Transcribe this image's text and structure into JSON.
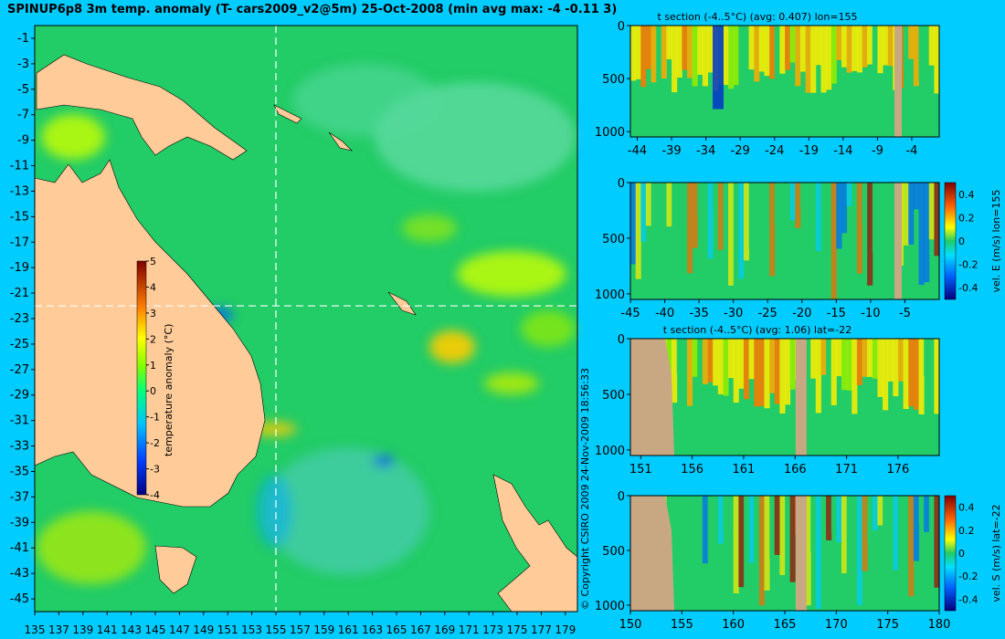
{
  "main_title": "SPINUP6p8 3m temp. anomaly (T- cars2009_v2@5m) 25-Oct-2008 (min avg max: -4 -0.11 3)",
  "copyright": "© Copyright CSIRO 2009   24-Nov-2009 18:56:33",
  "map": {
    "lat_ticks": [
      "-1",
      "-3",
      "-5",
      "-7",
      "-9",
      "-11",
      "-13",
      "-15",
      "-17",
      "-19",
      "-21",
      "-23",
      "-25",
      "-27",
      "-29",
      "-31",
      "-33",
      "-35",
      "-37",
      "-39",
      "-41",
      "-43",
      "-45"
    ],
    "lon_ticks": [
      "135",
      "137",
      "139",
      "141",
      "143",
      "145",
      "147",
      "149",
      "151",
      "153",
      "155",
      "157",
      "159",
      "161",
      "163",
      "165",
      "167",
      "169",
      "171",
      "173",
      "175",
      "177",
      "179"
    ],
    "section_lon": 155,
    "section_lat": -22,
    "colorbar": {
      "label": "temperature anomaly (°C)",
      "ticks": [
        "5",
        "4",
        "3",
        "2",
        "1",
        "0",
        "-1",
        "-2",
        "-3",
        "-4"
      ]
    }
  },
  "panels": [
    {
      "id": "p1",
      "title": "t section (-4..5°C) (avg: 0.407) lon=155",
      "x_ticks": [
        "-44",
        "-39",
        "-34",
        "-29",
        "-24",
        "-19",
        "-14",
        "-9",
        "-4"
      ],
      "y_ticks": [
        "0",
        "500",
        "1000"
      ],
      "colorbar": null
    },
    {
      "id": "p2",
      "title": "",
      "x_ticks": [
        "-45",
        "-40",
        "-35",
        "-30",
        "-25",
        "-20",
        "-15",
        "-10",
        "-5"
      ],
      "y_ticks": [
        "0",
        "500",
        "1000"
      ],
      "colorbar": {
        "label": "vel. E (m/s) lon=155",
        "ticks": [
          "0.4",
          "0.2",
          "0",
          "-0.2",
          "-0.4"
        ]
      }
    },
    {
      "id": "p3",
      "title": "t section (-4..5°C) (avg: 1.06) lat=-22",
      "x_ticks": [
        "151",
        "156",
        "161",
        "166",
        "171",
        "176"
      ],
      "y_ticks": [
        "0",
        "500",
        "1000"
      ],
      "colorbar": null
    },
    {
      "id": "p4",
      "title": "",
      "x_ticks": [
        "150",
        "155",
        "160",
        "165",
        "170",
        "175",
        "180"
      ],
      "y_ticks": [
        "0",
        "500",
        "1000"
      ],
      "colorbar": {
        "label": "vel. S (m/s) lat=-22",
        "ticks": [
          "0.4",
          "0.2",
          "0",
          "-0.2",
          "-0.4"
        ]
      }
    }
  ],
  "colors": {
    "background": "#00ccff",
    "land": "#ffcc99",
    "ocean": "#22cc66",
    "section_land": "#c8a882"
  }
}
